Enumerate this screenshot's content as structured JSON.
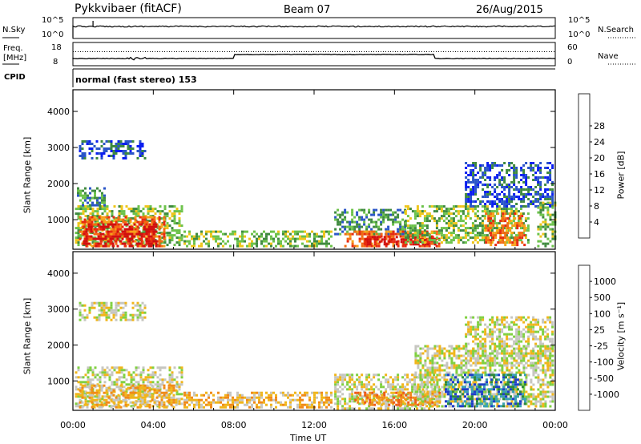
{
  "header": {
    "station": "Pykkvibaer (fitACF)",
    "beam": "Beam 07",
    "date": "26/Aug/2015"
  },
  "strip_panels": {
    "nsky": {
      "left_label": "N.Sky",
      "right_label": "N.Search",
      "left_ticks": [
        "10^5",
        "10^0"
      ],
      "right_ticks": [
        "10^5",
        "10^0"
      ]
    },
    "freq": {
      "left_label_line1": "Freq.",
      "left_label_line2": "[MHz]",
      "right_label": "Nave",
      "left_ticks": [
        "18",
        "8"
      ],
      "right_ticks": [
        "60",
        "0"
      ],
      "freq_step_times_hours": [
        8.0,
        18.0
      ],
      "nave_dotted_level": 50
    },
    "cpid": {
      "label": "CPID",
      "mode_text": "normal (fast stereo) 153"
    }
  },
  "chart_data": [
    {
      "type": "heatmap",
      "panel": "power",
      "xlabel": "",
      "ylabel": "Slant Range [km]",
      "xlim": [
        0,
        24
      ],
      "ylim": [
        180,
        4600
      ],
      "y_ticks": [
        1000,
        2000,
        3000,
        4000
      ],
      "colorbar": {
        "label": "Power [dB]",
        "range": [
          0,
          30
        ],
        "tick_labels": [
          "4",
          "8",
          "12",
          "16",
          "20",
          "24",
          "28"
        ],
        "colors": [
          "#0a1ef0",
          "#2a55c8",
          "#3f8a3f",
          "#6cc24a",
          "#eec51a",
          "#f7a21a",
          "#f36b12",
          "#e82a10",
          "#d10f0f"
        ]
      },
      "regions": [
        {
          "t": [
            0.1,
            5.4
          ],
          "r": [
            300,
            1400
          ],
          "level": 3
        },
        {
          "t": [
            0.3,
            4.6
          ],
          "r": [
            280,
            1100
          ],
          "level": 6
        },
        {
          "t": [
            0.5,
            4.2
          ],
          "r": [
            300,
            900
          ],
          "level": 8
        },
        {
          "t": [
            0.3,
            3.6
          ],
          "r": [
            2700,
            3200
          ],
          "level": 1
        },
        {
          "t": [
            0.2,
            1.6
          ],
          "r": [
            1400,
            1900
          ],
          "level": 2
        },
        {
          "t": [
            5.5,
            12.8
          ],
          "r": [
            250,
            700
          ],
          "level": 3
        },
        {
          "t": [
            13.0,
            16.5
          ],
          "r": [
            600,
            1300
          ],
          "level": 2
        },
        {
          "t": [
            13.5,
            18.2
          ],
          "r": [
            250,
            700
          ],
          "level": 6
        },
        {
          "t": [
            14.5,
            18.0
          ],
          "r": [
            300,
            550
          ],
          "level": 8
        },
        {
          "t": [
            16.5,
            22.6
          ],
          "r": [
            400,
            1400
          ],
          "level": 3
        },
        {
          "t": [
            20.5,
            22.5
          ],
          "r": [
            300,
            1200
          ],
          "level": 6
        },
        {
          "t": [
            19.5,
            23.9
          ],
          "r": [
            1400,
            2600
          ],
          "level": 1
        },
        {
          "t": [
            23.1,
            24.0
          ],
          "r": [
            300,
            1500
          ],
          "level": 3
        }
      ]
    },
    {
      "type": "heatmap",
      "panel": "velocity",
      "xlabel": "Time UT",
      "ylabel": "Slant Range [km]",
      "xlim": [
        0,
        24
      ],
      "ylim": [
        180,
        4600
      ],
      "x_tick_labels": [
        "00:00",
        "04:00",
        "08:00",
        "12:00",
        "16:00",
        "20:00",
        "00:00"
      ],
      "y_ticks": [
        1000,
        2000,
        3000,
        4000
      ],
      "colorbar": {
        "label": "Velocity [m s⁻¹]",
        "tick_labels": [
          "1000",
          "500",
          "100",
          "25",
          "-25",
          "-100",
          "-500",
          "-1000"
        ],
        "colors": [
          "#1f3fc8",
          "#3aa0b4",
          "#2e8a3c",
          "#7fd040",
          "#c6c6c0",
          "#f0b51a",
          "#f08a18",
          "#ee5a18",
          "#e41a10"
        ]
      },
      "regions": [
        {
          "t": [
            0.1,
            5.4
          ],
          "r": [
            300,
            1400
          ],
          "level": 4
        },
        {
          "t": [
            0.3,
            5.2
          ],
          "r": [
            250,
            900
          ],
          "level": 5
        },
        {
          "t": [
            0.3,
            3.6
          ],
          "r": [
            2700,
            3200
          ],
          "level": 4
        },
        {
          "t": [
            5.5,
            12.8
          ],
          "r": [
            250,
            700
          ],
          "level": 5
        },
        {
          "t": [
            13.0,
            18.2
          ],
          "r": [
            250,
            1200
          ],
          "level": 4
        },
        {
          "t": [
            14.0,
            18.2
          ],
          "r": [
            300,
            700
          ],
          "level": 6
        },
        {
          "t": [
            17.0,
            23.9
          ],
          "r": [
            300,
            2000
          ],
          "level": 4
        },
        {
          "t": [
            18.5,
            22.5
          ],
          "r": [
            300,
            1200
          ],
          "level": 1
        },
        {
          "t": [
            19.5,
            23.9
          ],
          "r": [
            1400,
            2800
          ],
          "level": 4
        }
      ]
    }
  ]
}
